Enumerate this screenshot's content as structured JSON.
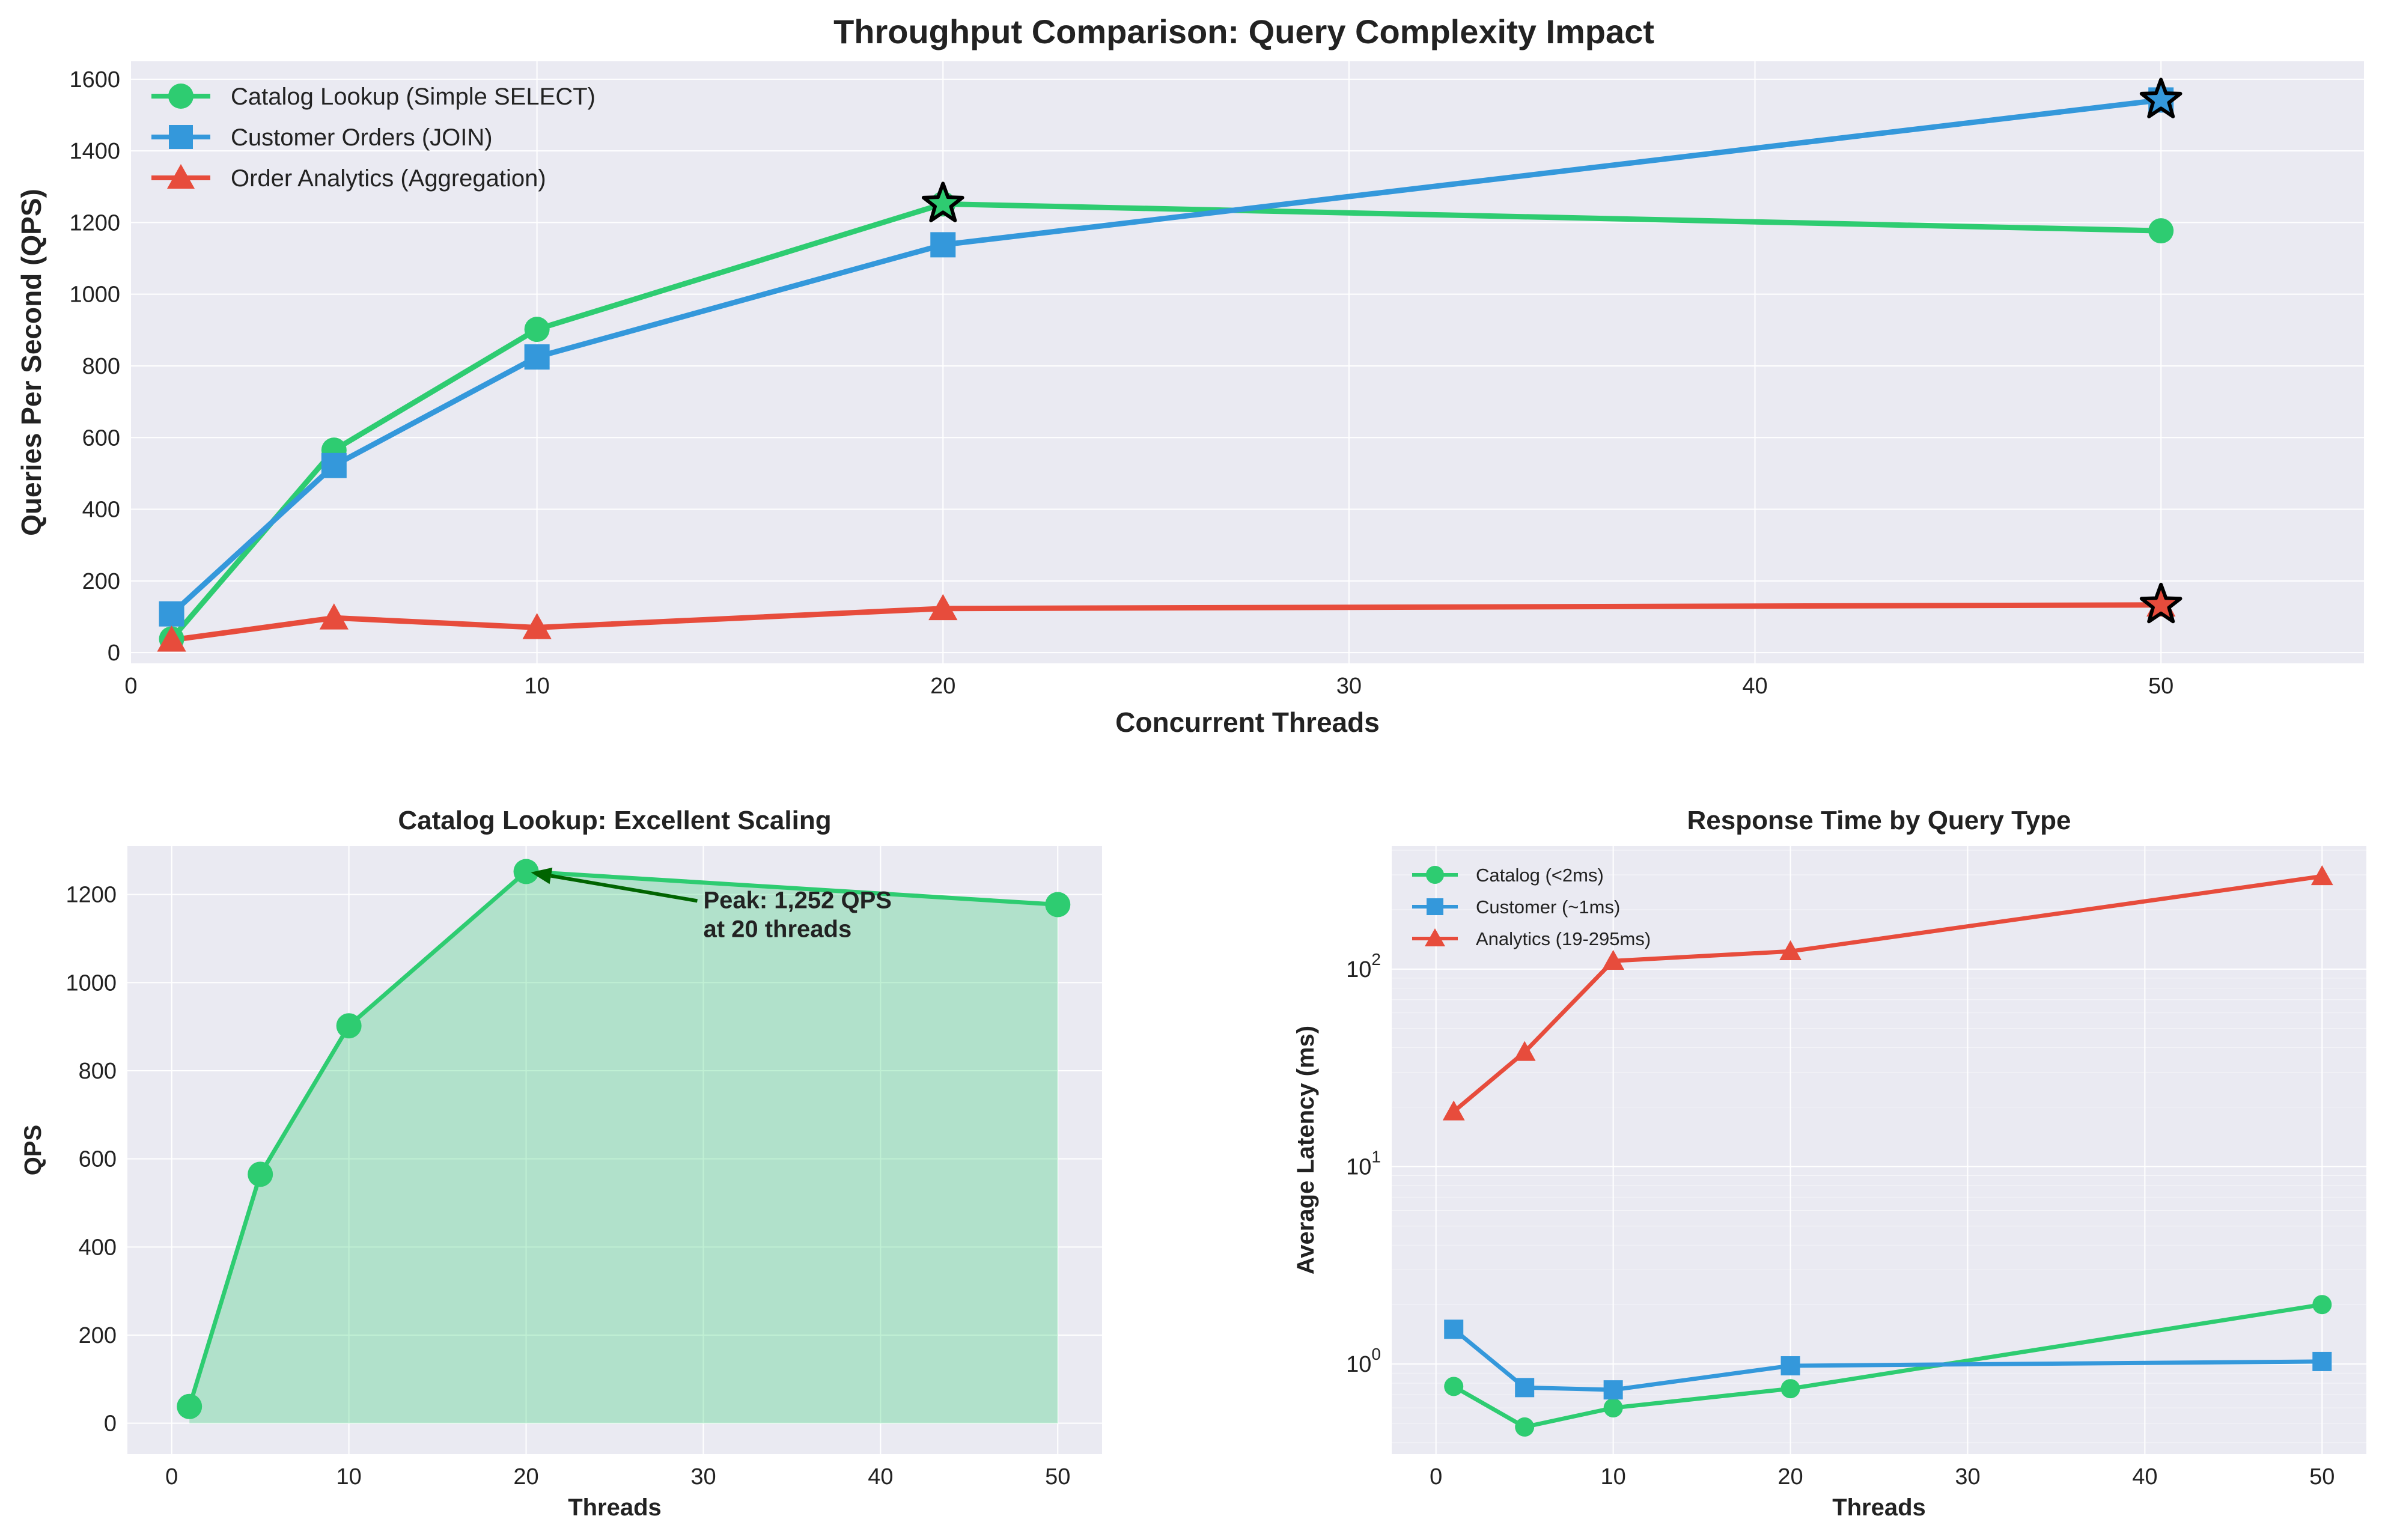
{
  "chart_data": [
    {
      "type": "line",
      "title": "Throughput Comparison: Query Complexity Impact",
      "xlabel": "Concurrent Threads",
      "ylabel": "Queries Per Second (QPS)",
      "xlim": [
        0,
        55
      ],
      "ylim": [
        -30,
        1650
      ],
      "xticks": [
        0,
        10,
        20,
        30,
        40,
        50
      ],
      "yticks": [
        0,
        200,
        400,
        600,
        800,
        1000,
        1200,
        1400,
        1600
      ],
      "grid": true,
      "legend_position": "top-left",
      "x": [
        1,
        5,
        10,
        20,
        50
      ],
      "series": [
        {
          "name": "Catalog Lookup (Simple SELECT)",
          "color": "#2ecc71",
          "marker": "circle",
          "values": [
            38,
            565,
            902,
            1252,
            1177
          ],
          "peak_index": 3
        },
        {
          "name": "Customer Orders (JOIN)",
          "color": "#3498db",
          "marker": "square",
          "values": [
            108,
            522,
            825,
            1138,
            1542
          ],
          "peak_index": 4
        },
        {
          "name": "Order Analytics (Aggregation)",
          "color": "#e74c3c",
          "marker": "triangle",
          "values": [
            35,
            97,
            70,
            123,
            133
          ],
          "peak_index": 4
        }
      ]
    },
    {
      "type": "area",
      "title": "Catalog Lookup: Excellent Scaling",
      "xlabel": "Threads",
      "ylabel": "QPS",
      "xlim": [
        -2.5,
        52.5
      ],
      "ylim": [
        -70,
        1310
      ],
      "xticks": [
        0,
        10,
        20,
        30,
        40,
        50
      ],
      "yticks": [
        0,
        200,
        400,
        600,
        800,
        1000,
        1200
      ],
      "grid": true,
      "x": [
        1,
        5,
        10,
        20,
        50
      ],
      "series": [
        {
          "name": "Catalog Lookup",
          "color": "#2ecc71",
          "values": [
            38,
            565,
            902,
            1252,
            1177
          ]
        }
      ],
      "annotation": {
        "line1": "Peak: 1,252 QPS",
        "line2": "at 20 threads",
        "x": 20,
        "y": 1252,
        "text_x": 30,
        "text_y": 1150
      }
    },
    {
      "type": "line",
      "title": "Response Time by Query Type",
      "xlabel": "Threads",
      "ylabel": "Average Latency (ms)",
      "yscale": "log",
      "xlim": [
        -2.5,
        52.5
      ],
      "ylim": [
        0.35,
        420
      ],
      "xticks": [
        0,
        10,
        20,
        30,
        40,
        50
      ],
      "yticks": [
        1,
        10,
        100
      ],
      "ytick_labels": {
        "base": "10",
        "exps": [
          "0",
          "1",
          "2"
        ]
      },
      "grid": true,
      "legend_position": "top-left",
      "x": [
        1,
        5,
        10,
        20,
        50
      ],
      "series": [
        {
          "name": "Catalog (<2ms)",
          "color": "#2ecc71",
          "marker": "circle",
          "values": [
            0.77,
            0.48,
            0.6,
            0.75,
            2.0
          ]
        },
        {
          "name": "Customer (~1ms)",
          "color": "#3498db",
          "marker": "square",
          "values": [
            1.5,
            0.76,
            0.74,
            0.98,
            1.03
          ]
        },
        {
          "name": "Analytics (19-295ms)",
          "color": "#e74c3c",
          "marker": "triangle",
          "values": [
            19,
            38,
            110,
            123,
            295
          ]
        }
      ]
    }
  ]
}
